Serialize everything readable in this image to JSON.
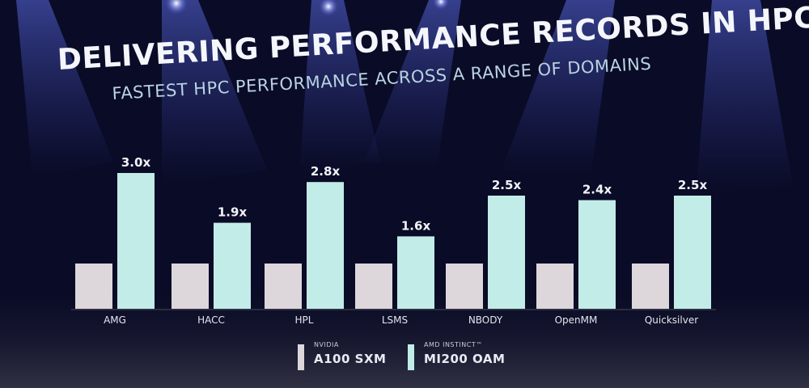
{
  "title": "DELIVERING PERFORMANCE RECORDS IN HPC",
  "subtitle": "FASTEST HPC PERFORMANCE ACROSS A RANGE OF DOMAINS",
  "colors": {
    "background": "#0a0b26",
    "nvidia_bar": "#ddd7dc",
    "amd_bar": "#c2ece8",
    "spotlight": "#4f5fd0"
  },
  "legend": [
    {
      "sub": "NVIDIA",
      "main": "A100 SXM",
      "color": "#ddd7dc"
    },
    {
      "sub": "AMD INSTINCT™",
      "main": "MI200 OAM",
      "color": "#c2ece8"
    }
  ],
  "chart_data": {
    "type": "bar",
    "categories": [
      "AMG",
      "HACC",
      "HPL",
      "LSMS",
      "NBODY",
      "OpenMM",
      "Quicksilver"
    ],
    "series": [
      {
        "name": "A100 SXM",
        "values": [
          1.0,
          1.0,
          1.0,
          1.0,
          1.0,
          1.0,
          1.0
        ]
      },
      {
        "name": "MI200 OAM",
        "values": [
          3.0,
          1.9,
          2.8,
          1.6,
          2.5,
          2.4,
          2.5
        ]
      }
    ],
    "data_labels": [
      "3.0x",
      "1.9x",
      "2.8x",
      "1.6x",
      "2.5x",
      "2.4x",
      "2.5x"
    ],
    "ylim": [
      0,
      3.0
    ],
    "grid": false,
    "legend_position": "bottom-center"
  }
}
